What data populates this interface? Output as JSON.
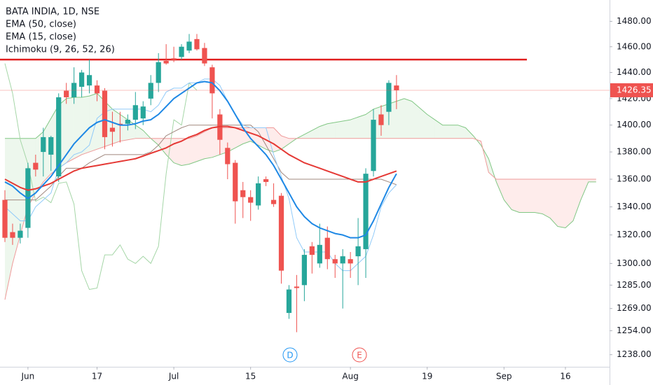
{
  "chart_data": {
    "type": "candlestick",
    "title": "BATA INDIA, 1D, NSE",
    "log_scale": true,
    "grid": false,
    "up_color": "#26a69a",
    "down_color": "#ef5350",
    "ylim": [
      1230,
      1497
    ],
    "yticks": [
      {
        "value": 1480,
        "label": "1480.00"
      },
      {
        "value": 1460,
        "label": "1460.00"
      },
      {
        "value": 1440,
        "label": "1440.00"
      },
      {
        "value": 1420,
        "label": "1420.00"
      },
      {
        "value": 1400,
        "label": "1400.00"
      },
      {
        "value": 1380,
        "label": "1380.00"
      },
      {
        "value": 1360,
        "label": "1360.00"
      },
      {
        "value": 1340,
        "label": "1340.00"
      },
      {
        "value": 1320,
        "label": "1320.00"
      },
      {
        "value": 1300,
        "label": "1300.00"
      },
      {
        "value": 1285,
        "label": "1285.00"
      },
      {
        "value": 1269,
        "label": "1269.00"
      },
      {
        "value": 1254,
        "label": "1254.00"
      },
      {
        "value": 1238,
        "label": "1238.00"
      }
    ],
    "xlim": [
      -0.64,
      78.75
    ],
    "xticks": [
      {
        "value": 3,
        "label": "Jun"
      },
      {
        "value": 12,
        "label": "17"
      },
      {
        "value": 22,
        "label": "Jul"
      },
      {
        "value": 32,
        "label": "15"
      },
      {
        "value": 45,
        "label": "Aug"
      },
      {
        "value": 55,
        "label": "19"
      },
      {
        "value": 65,
        "label": "Sep"
      },
      {
        "value": 73,
        "label": "16"
      }
    ],
    "ohlc": [
      [
        1345,
        1352,
        1315,
        1318
      ],
      [
        1322,
        1328,
        1313,
        1318
      ],
      [
        1318,
        1328,
        1314,
        1323
      ],
      [
        1325,
        1372,
        1318,
        1368
      ],
      [
        1372,
        1378,
        1362,
        1367
      ],
      [
        1380,
        1398,
        1362,
        1391
      ],
      [
        1378,
        1392,
        1366,
        1391
      ],
      [
        1362,
        1424,
        1358,
        1421
      ],
      [
        1426,
        1432,
        1416,
        1421
      ],
      [
        1421,
        1444,
        1416,
        1432
      ],
      [
        1429,
        1442,
        1421,
        1440
      ],
      [
        1430,
        1450,
        1424,
        1438
      ],
      [
        1430,
        1434,
        1418,
        1424
      ],
      [
        1426,
        1428,
        1382,
        1391
      ],
      [
        1398,
        1410,
        1384,
        1395
      ],
      [
        1401,
        1410,
        1387,
        1400
      ],
      [
        1401,
        1408,
        1396,
        1404
      ],
      [
        1404,
        1425,
        1397,
        1415
      ],
      [
        1405,
        1418,
        1400,
        1414
      ],
      [
        1420,
        1438,
        1415,
        1432
      ],
      [
        1432,
        1455,
        1425,
        1448
      ],
      [
        1449,
        1462,
        1446,
        1447
      ],
      [
        1451,
        1460,
        1448,
        1450
      ],
      [
        1452,
        1462,
        1450,
        1460
      ],
      [
        1457,
        1470,
        1455,
        1464
      ],
      [
        1466,
        1470,
        1457,
        1458
      ],
      [
        1459,
        1463,
        1445,
        1447
      ],
      [
        1444,
        1446,
        1405,
        1424
      ],
      [
        1408,
        1412,
        1378,
        1389
      ],
      [
        1383,
        1387,
        1360,
        1371
      ],
      [
        1372,
        1374,
        1328,
        1344
      ],
      [
        1352,
        1358,
        1332,
        1347
      ],
      [
        1347,
        1352,
        1330,
        1343
      ],
      [
        1341,
        1362,
        1338,
        1357
      ],
      [
        1360,
        1362,
        1355,
        1358
      ],
      [
        1345,
        1357,
        1340,
        1342
      ],
      [
        1348,
        1350,
        1286,
        1295
      ],
      [
        1266,
        1285,
        1262,
        1282
      ],
      [
        1284,
        1292,
        1253,
        1283
      ],
      [
        1285,
        1310,
        1274,
        1306
      ],
      [
        1312,
        1315,
        1293,
        1306
      ],
      [
        1300,
        1328,
        1297,
        1313
      ],
      [
        1318,
        1326,
        1296,
        1303
      ],
      [
        1303,
        1306,
        1290,
        1300
      ],
      [
        1300,
        1310,
        1269,
        1305
      ],
      [
        1303,
        1308,
        1290,
        1300
      ],
      [
        1305,
        1332,
        1285,
        1312
      ],
      [
        1310,
        1368,
        1290,
        1364
      ],
      [
        1366,
        1412,
        1362,
        1404
      ],
      [
        1408,
        1415,
        1392,
        1400
      ],
      [
        1410,
        1434,
        1400,
        1432
      ],
      [
        1430,
        1438,
        1412,
        1426.35
      ]
    ],
    "series": [
      {
        "name": "EMA (50, close)",
        "color": "#e53935",
        "values": [
          1360,
          1357,
          1354,
          1352,
          1353,
          1355,
          1357,
          1360,
          1363,
          1366,
          1368,
          1369,
          1370,
          1371,
          1372,
          1373,
          1374,
          1375,
          1377,
          1379,
          1381,
          1383,
          1386,
          1388,
          1391,
          1393,
          1396,
          1398,
          1399,
          1399,
          1398,
          1396,
          1394,
          1392,
          1389,
          1386,
          1382,
          1378,
          1375,
          1372,
          1370,
          1368,
          1366,
          1364,
          1362,
          1360,
          1358,
          1358,
          1360,
          1362,
          1364,
          1366
        ]
      },
      {
        "name": "EMA (15, close)",
        "color": "#1e88e5",
        "values": [
          1358,
          1355,
          1350,
          1346,
          1350,
          1356,
          1362,
          1370,
          1378,
          1386,
          1392,
          1398,
          1402,
          1404,
          1402,
          1400,
          1400,
          1401,
          1403,
          1404,
          1408,
          1414,
          1420,
          1424,
          1428,
          1432,
          1433,
          1432,
          1426,
          1418,
          1408,
          1398,
          1390,
          1384,
          1378,
          1370,
          1360,
          1350,
          1340,
          1333,
          1328,
          1325,
          1323,
          1321,
          1320,
          1318,
          1318,
          1320,
          1330,
          1342,
          1354,
          1364
        ]
      }
    ],
    "ichimoku": {
      "name": "Ichimoku (9, 26, 52, 26)",
      "conversion": {
        "color": "#90caf9",
        "values": [
          1340,
          1335,
          1330,
          1330,
          1340,
          1345,
          1350,
          1368,
          1372,
          1378,
          1380,
          1385,
          1405,
          1410,
          1412,
          1412,
          1412,
          1412,
          1412,
          1410,
          1415,
          1425,
          1428,
          1428,
          1432,
          1432,
          1435,
          1435,
          1430,
          1418,
          1408,
          1400,
          1398,
          1398,
          1398,
          1378,
          1362,
          1346,
          1318,
          1308,
          1308,
          1308,
          1308,
          1300,
          1295,
          1295,
          1300,
          1305,
          1320,
          1340,
          1350,
          1356
        ]
      },
      "base": {
        "color": "#a1887f",
        "values": [
          1345,
          1345,
          1345,
          1345,
          1345,
          1350,
          1355,
          1362,
          1368,
          1368,
          1368,
          1372,
          1375,
          1378,
          1378,
          1378,
          1378,
          1378,
          1378,
          1380,
          1385,
          1392,
          1395,
          1398,
          1400,
          1400,
          1400,
          1400,
          1400,
          1400,
          1400,
          1400,
          1400,
          1395,
          1385,
          1375,
          1365,
          1360,
          1360,
          1360,
          1360,
          1360,
          1360,
          1360,
          1360,
          1360,
          1360,
          1360,
          1360,
          1360,
          1358,
          1356
        ]
      },
      "lagging": {
        "color": "#a5d6a7",
        "values": [
          1447,
          1424,
          1389,
          1371,
          1344,
          1347,
          1343,
          1357,
          1358,
          1342,
          1295,
          1282,
          1283,
          1306,
          1306,
          1313,
          1303,
          1300,
          1305,
          1300,
          1312,
          1364,
          1404,
          1400,
          1432,
          1426.35
        ]
      },
      "span_a": {
        "color": "#81c784",
        "fill": "rgba(76,175,80,0.1)",
        "values": [
          1390,
          1390,
          1390,
          1390,
          1390,
          1395,
          1405,
          1415,
          1420,
          1421,
          1421,
          1422,
          1424,
          1418,
          1412,
          1408,
          1404,
          1400,
          1396,
          1390,
          1385,
          1378,
          1372,
          1370,
          1371,
          1373,
          1375,
          1376,
          1378,
          1380,
          1383,
          1386,
          1388,
          1385,
          1382,
          1380,
          1382,
          1386,
          1390,
          1393,
          1396,
          1399,
          1401,
          1402,
          1403,
          1404,
          1406,
          1408,
          1412,
          1414,
          1416,
          1418,
          1420,
          1418,
          1413,
          1408,
          1404,
          1400,
          1400,
          1400,
          1398,
          1392,
          1385,
          1375,
          1358,
          1345,
          1338,
          1336,
          1336,
          1336,
          1335,
          1332,
          1326,
          1325,
          1330,
          1345,
          1358,
          1358
        ]
      },
      "span_b": {
        "color": "#ef9a9a",
        "fill": "rgba(244,67,54,0.1)",
        "values": [
          1275,
          1300,
          1320,
          1340,
          1350,
          1358,
          1364,
          1368,
          1372,
          1375,
          1378,
          1380,
          1382,
          1384,
          1386,
          1388,
          1389,
          1390,
          1390,
          1390,
          1390,
          1390,
          1390,
          1390,
          1390,
          1392,
          1395,
          1398,
          1398,
          1398,
          1398,
          1398,
          1398,
          1398,
          1398,
          1398,
          1392,
          1390,
          1390,
          1390,
          1390,
          1390,
          1390,
          1390,
          1390,
          1390,
          1390,
          1390,
          1390,
          1390,
          1390,
          1390,
          1390,
          1390,
          1390,
          1390,
          1390,
          1390,
          1390,
          1390,
          1390,
          1390,
          1388,
          1365,
          1360,
          1360,
          1360,
          1360,
          1360,
          1360,
          1360,
          1360,
          1360,
          1360,
          1360,
          1360,
          1360,
          1360
        ]
      }
    },
    "horizontal_line": {
      "value": 1450,
      "color": "#e02020"
    },
    "events": [
      {
        "label": "D",
        "color": "#2196f3"
      },
      {
        "label": "E",
        "color": "#ef5350"
      }
    ]
  }
}
